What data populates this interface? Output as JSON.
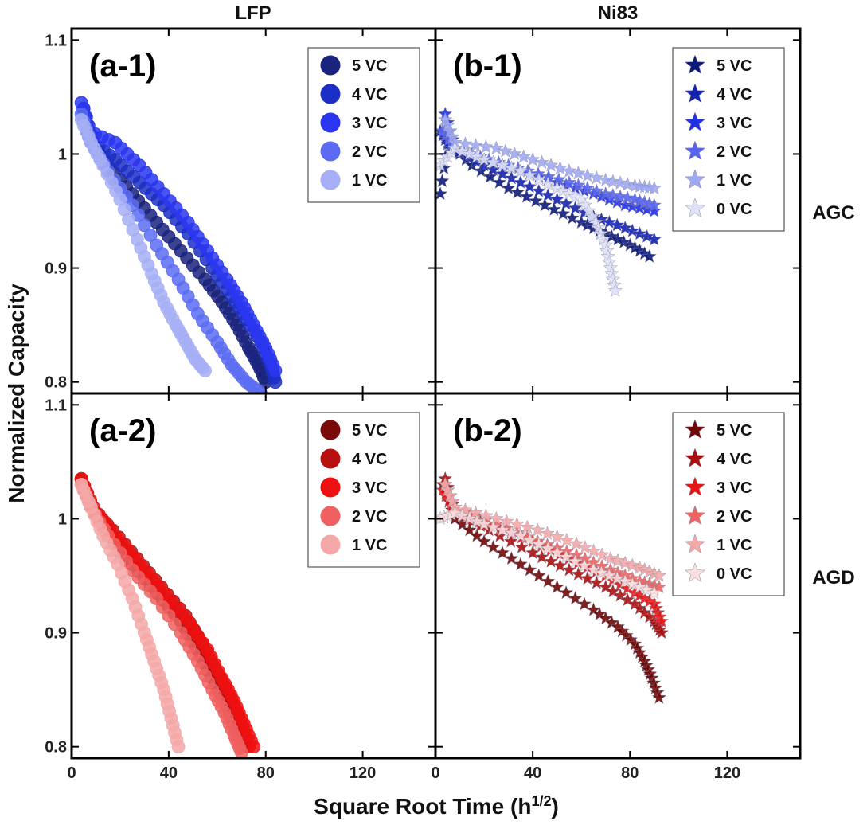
{
  "figure": {
    "xlabel_main": "Square Root Time (h",
    "xlabel_sup": "1/2",
    "xlabel_close": ")",
    "ylabel": "Normalized Capacity",
    "col_titles": [
      "LFP",
      "Ni83"
    ],
    "row_titles": [
      "AGC",
      "AGD"
    ]
  },
  "chart_data": [
    {
      "id": "a1",
      "type": "scatter",
      "label": "(a-1)",
      "marker": "circle",
      "xlim": [
        0,
        150
      ],
      "ylim": [
        0.79,
        1.11
      ],
      "xticks": [
        0,
        40,
        80,
        120
      ],
      "yticks": [
        0.8,
        0.9,
        1,
        1.1
      ],
      "xtick_labels": [
        "0",
        "40",
        "80",
        "120"
      ],
      "ytick_labels": [
        "0.8",
        "0.9",
        "1",
        "1.1"
      ],
      "legend_position": "top-right",
      "series": [
        {
          "name": "5 VC",
          "color": "#1a237e",
          "x_end": 80,
          "points": [
            [
              5,
              1.03
            ],
            [
              8,
              1.01
            ],
            [
              15,
              0.99
            ],
            [
              25,
              0.965
            ],
            [
              35,
              0.94
            ],
            [
              45,
              0.915
            ],
            [
              55,
              0.89
            ],
            [
              62,
              0.87
            ],
            [
              68,
              0.85
            ],
            [
              73,
              0.83
            ],
            [
              77,
              0.815
            ],
            [
              80,
              0.8
            ]
          ]
        },
        {
          "name": "4 VC",
          "color": "#1c2fc4",
          "x_end": 84,
          "points": [
            [
              5,
              1.04
            ],
            [
              9,
              1.01
            ],
            [
              18,
              0.995
            ],
            [
              28,
              0.975
            ],
            [
              38,
              0.955
            ],
            [
              48,
              0.93
            ],
            [
              58,
              0.9
            ],
            [
              66,
              0.875
            ],
            [
              72,
              0.855
            ],
            [
              78,
              0.835
            ],
            [
              82,
              0.815
            ],
            [
              84,
              0.8
            ]
          ]
        },
        {
          "name": "3 VC",
          "color": "#2a36f0",
          "x_end": 84,
          "points": [
            [
              4,
              1.045
            ],
            [
              7,
              1.02
            ],
            [
              18,
              1.01
            ],
            [
              28,
              0.99
            ],
            [
              38,
              0.965
            ],
            [
              48,
              0.94
            ],
            [
              56,
              0.915
            ],
            [
              64,
              0.89
            ],
            [
              70,
              0.87
            ],
            [
              75,
              0.85
            ],
            [
              80,
              0.83
            ],
            [
              84,
              0.81
            ]
          ]
        },
        {
          "name": "2 VC",
          "color": "#5b6cf2",
          "x_end": 78,
          "points": [
            [
              4,
              1.035
            ],
            [
              8,
              1.01
            ],
            [
              15,
              0.985
            ],
            [
              25,
              0.955
            ],
            [
              35,
              0.92
            ],
            [
              44,
              0.89
            ],
            [
              52,
              0.86
            ],
            [
              60,
              0.835
            ],
            [
              66,
              0.815
            ],
            [
              72,
              0.8
            ],
            [
              78,
              0.79
            ]
          ]
        },
        {
          "name": "1 VC",
          "color": "#a6aff5",
          "x_end": 55,
          "points": [
            [
              4,
              1.03
            ],
            [
              8,
              1.01
            ],
            [
              13,
              0.99
            ],
            [
              20,
              0.96
            ],
            [
              27,
              0.925
            ],
            [
              33,
              0.895
            ],
            [
              38,
              0.87
            ],
            [
              43,
              0.85
            ],
            [
              47,
              0.835
            ],
            [
              51,
              0.82
            ],
            [
              55,
              0.81
            ]
          ]
        }
      ]
    },
    {
      "id": "b1",
      "type": "scatter",
      "label": "(b-1)",
      "marker": "star",
      "xlim": [
        0,
        150
      ],
      "ylim": [
        0.79,
        1.11
      ],
      "xticks": [
        0,
        40,
        80,
        120
      ],
      "yticks": [
        0.8,
        0.9,
        1,
        1.1
      ],
      "xtick_labels": [
        "0",
        "40",
        "80",
        "120"
      ],
      "ytick_labels": [
        "0.8",
        "0.9",
        "1",
        "1.1"
      ],
      "legend_position": "top-right",
      "series": [
        {
          "name": "5 VC",
          "color": "#0d1a7a",
          "points": [
            [
              2,
              0.965
            ],
            [
              5,
              1.01
            ],
            [
              15,
              0.99
            ],
            [
              30,
              0.97
            ],
            [
              45,
              0.955
            ],
            [
              60,
              0.94
            ],
            [
              70,
              0.93
            ],
            [
              80,
              0.92
            ],
            [
              88,
              0.91
            ]
          ]
        },
        {
          "name": "4 VC",
          "color": "#1422b0",
          "points": [
            [
              2,
              1.02
            ],
            [
              6,
              1.005
            ],
            [
              20,
              0.99
            ],
            [
              35,
              0.975
            ],
            [
              50,
              0.96
            ],
            [
              65,
              0.945
            ],
            [
              78,
              0.935
            ],
            [
              90,
              0.925
            ]
          ]
        },
        {
          "name": "3 VC",
          "color": "#2230e6",
          "points": [
            [
              4,
              1.035
            ],
            [
              8,
              1.005
            ],
            [
              20,
              0.995
            ],
            [
              35,
              0.985
            ],
            [
              50,
              0.975
            ],
            [
              65,
              0.965
            ],
            [
              78,
              0.955
            ],
            [
              90,
              0.95
            ]
          ]
        },
        {
          "name": "2 VC",
          "color": "#5765ee",
          "points": [
            [
              3,
              1.02
            ],
            [
              8,
              1.005
            ],
            [
              22,
              0.995
            ],
            [
              38,
              0.985
            ],
            [
              55,
              0.975
            ],
            [
              70,
              0.965
            ],
            [
              82,
              0.96
            ],
            [
              90,
              0.955
            ]
          ]
        },
        {
          "name": "1 VC",
          "color": "#9ea8f3",
          "points": [
            [
              4,
              1.03
            ],
            [
              8,
              1.01
            ],
            [
              25,
              1.005
            ],
            [
              40,
              0.995
            ],
            [
              55,
              0.985
            ],
            [
              70,
              0.977
            ],
            [
              82,
              0.972
            ],
            [
              90,
              0.97
            ]
          ]
        },
        {
          "name": "0 VC",
          "color": "#dfe2f7",
          "points": [
            [
              2,
              0.99
            ],
            [
              8,
              1.005
            ],
            [
              20,
              0.995
            ],
            [
              35,
              0.985
            ],
            [
              50,
              0.97
            ],
            [
              60,
              0.96
            ],
            [
              66,
              0.94
            ],
            [
              70,
              0.92
            ],
            [
              72,
              0.9
            ],
            [
              74,
              0.88
            ]
          ]
        }
      ]
    },
    {
      "id": "a2",
      "type": "scatter",
      "label": "(a-2)",
      "marker": "circle",
      "xlim": [
        0,
        150
      ],
      "ylim": [
        0.79,
        1.11
      ],
      "xticks": [
        0,
        40,
        80,
        120
      ],
      "yticks": [
        0.8,
        0.9,
        1,
        1.1
      ],
      "xtick_labels": [
        "0",
        "40",
        "80",
        "120"
      ],
      "ytick_labels": [
        "0.8",
        "0.9",
        "1",
        "1.1"
      ],
      "legend_position": "top-right",
      "series": [
        {
          "name": "5 VC",
          "color": "#7a0a0a",
          "points": [
            [
              4,
              1.035
            ],
            [
              8,
              1.01
            ],
            [
              15,
              0.99
            ],
            [
              25,
              0.96
            ],
            [
              35,
              0.935
            ],
            [
              45,
              0.91
            ],
            [
              52,
              0.885
            ],
            [
              58,
              0.86
            ],
            [
              63,
              0.84
            ],
            [
              67,
              0.82
            ],
            [
              71,
              0.8
            ]
          ]
        },
        {
          "name": "4 VC",
          "color": "#b81010",
          "points": [
            [
              4,
              1.035
            ],
            [
              8,
              1.01
            ],
            [
              17,
              0.99
            ],
            [
              27,
              0.965
            ],
            [
              37,
              0.94
            ],
            [
              47,
              0.915
            ],
            [
              54,
              0.89
            ],
            [
              60,
              0.865
            ],
            [
              65,
              0.845
            ],
            [
              69,
              0.825
            ],
            [
              73,
              0.8
            ]
          ]
        },
        {
          "name": "3 VC",
          "color": "#ee1111",
          "points": [
            [
              4,
              1.035
            ],
            [
              9,
              1.01
            ],
            [
              18,
              0.985
            ],
            [
              28,
              0.96
            ],
            [
              38,
              0.935
            ],
            [
              48,
              0.91
            ],
            [
              56,
              0.885
            ],
            [
              62,
              0.86
            ],
            [
              67,
              0.84
            ],
            [
              71,
              0.82
            ],
            [
              75,
              0.8
            ]
          ]
        },
        {
          "name": "2 VC",
          "color": "#f06060",
          "points": [
            [
              4,
              1.03
            ],
            [
              8,
              1.01
            ],
            [
              15,
              0.985
            ],
            [
              25,
              0.955
            ],
            [
              35,
              0.93
            ],
            [
              45,
              0.9
            ],
            [
              52,
              0.875
            ],
            [
              58,
              0.85
            ],
            [
              63,
              0.83
            ],
            [
              67,
              0.81
            ],
            [
              70,
              0.795
            ]
          ]
        },
        {
          "name": "1 VC",
          "color": "#f5a8a8",
          "points": [
            [
              4,
              1.03
            ],
            [
              8,
              1.01
            ],
            [
              13,
              0.985
            ],
            [
              19,
              0.96
            ],
            [
              25,
              0.93
            ],
            [
              30,
              0.9
            ],
            [
              34,
              0.875
            ],
            [
              38,
              0.85
            ],
            [
              41,
              0.825
            ],
            [
              44,
              0.8
            ]
          ]
        }
      ]
    },
    {
      "id": "b2",
      "type": "scatter",
      "label": "(b-2)",
      "marker": "star",
      "xlim": [
        0,
        150
      ],
      "ylim": [
        0.79,
        1.11
      ],
      "xticks": [
        0,
        40,
        80,
        120
      ],
      "yticks": [
        0.8,
        0.9,
        1,
        1.1
      ],
      "xtick_labels": [
        "0",
        "40",
        "80",
        "120"
      ],
      "ytick_labels": [
        "0.8",
        "0.9",
        "1",
        "1.1"
      ],
      "legend_position": "top-right",
      "series": [
        {
          "name": "5 VC",
          "color": "#6e0808",
          "points": [
            [
              3,
              1.03
            ],
            [
              8,
              1.0
            ],
            [
              20,
              0.98
            ],
            [
              35,
              0.96
            ],
            [
              50,
              0.94
            ],
            [
              65,
              0.92
            ],
            [
              75,
              0.905
            ],
            [
              82,
              0.89
            ],
            [
              86,
              0.875
            ],
            [
              89,
              0.86
            ],
            [
              92,
              0.843
            ]
          ]
        },
        {
          "name": "4 VC",
          "color": "#a80e0e",
          "points": [
            [
              4,
              1.035
            ],
            [
              8,
              1.005
            ],
            [
              22,
              0.99
            ],
            [
              40,
              0.97
            ],
            [
              55,
              0.955
            ],
            [
              70,
              0.94
            ],
            [
              82,
              0.925
            ],
            [
              90,
              0.91
            ],
            [
              93,
              0.9
            ]
          ]
        },
        {
          "name": "3 VC",
          "color": "#e81515",
          "points": [
            [
              3,
              1.025
            ],
            [
              8,
              1.005
            ],
            [
              22,
              0.995
            ],
            [
              40,
              0.98
            ],
            [
              55,
              0.965
            ],
            [
              70,
              0.95
            ],
            [
              82,
              0.935
            ],
            [
              90,
              0.925
            ],
            [
              93,
              0.91
            ]
          ]
        },
        {
          "name": "2 VC",
          "color": "#ef6262",
          "points": [
            [
              4,
              1.03
            ],
            [
              8,
              1.01
            ],
            [
              25,
              0.995
            ],
            [
              42,
              0.98
            ],
            [
              58,
              0.968
            ],
            [
              72,
              0.955
            ],
            [
              84,
              0.945
            ],
            [
              92,
              0.94
            ]
          ]
        },
        {
          "name": "1 VC",
          "color": "#f4a9a9",
          "points": [
            [
              4,
              1.03
            ],
            [
              8,
              1.01
            ],
            [
              25,
              1.0
            ],
            [
              42,
              0.99
            ],
            [
              58,
              0.978
            ],
            [
              72,
              0.965
            ],
            [
              84,
              0.957
            ],
            [
              92,
              0.95
            ]
          ]
        },
        {
          "name": "0 VC",
          "color": "#f8dede",
          "points": [
            [
              2,
              1.0
            ],
            [
              8,
              1.005
            ],
            [
              20,
              0.995
            ],
            [
              35,
              0.985
            ],
            [
              50,
              0.97
            ],
            [
              65,
              0.955
            ],
            [
              78,
              0.945
            ],
            [
              90,
              0.935
            ]
          ]
        }
      ]
    }
  ]
}
